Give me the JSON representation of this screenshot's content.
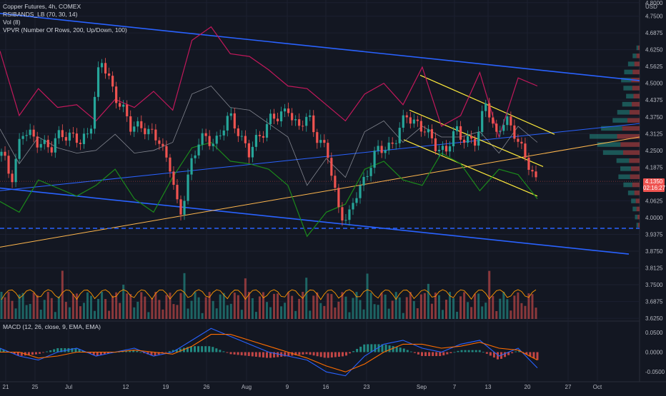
{
  "legend": {
    "symbol": "Copper Futures, 4h, COMEX",
    "indicator1": "RSIBANDS_LB (70, 30, 14)",
    "indicator2": "Vol (8)",
    "indicator3": "VPVR (Number Of Rows, 200, Up/Down, 100)",
    "macd": "MACD (12, 26, close, 9, EMA, EMA)"
  },
  "price_tag": {
    "price": "4.1350",
    "countdown": "02:16:27"
  },
  "colors": {
    "background": "#131722",
    "up": "#26a69a",
    "down": "#ef5350",
    "upper_band": "#c2185b",
    "lower_band": "#1b8a1b",
    "mid_band": "#b2b5be",
    "trend_blue": "#2962ff",
    "trend_orange": "#ffb74d",
    "channel_yellow": "#ffeb3b",
    "macd_line": "#2962ff",
    "signal_line": "#ff6d00"
  },
  "chart_data": {
    "type": "line",
    "title": "Copper Futures, 4h, COMEX",
    "y_unit": "USD",
    "ylim": [
      3.62,
      4.81
    ],
    "x_ticks": [
      "21",
      "25",
      "Jul",
      "12",
      "19",
      "26",
      "Aug",
      "9",
      "16",
      "23",
      "Sep",
      "7",
      "13",
      "20",
      "27",
      "Oct"
    ],
    "y_ticks": [
      "4.8000",
      "4.7500",
      "4.6875",
      "4.6250",
      "4.5625",
      "4.5000",
      "4.4375",
      "4.3750",
      "4.3125",
      "4.2500",
      "4.1875",
      "4.1250",
      "4.0625",
      "4.0000",
      "3.9375",
      "3.8750",
      "3.8125",
      "3.7500",
      "3.6875",
      "3.6250"
    ],
    "macd_ticks": [
      "0.0500",
      "0.0000",
      "-0.0500"
    ],
    "usd_label": "USD",
    "price_series": {
      "name": "Copper Futures",
      "x": [
        0,
        6,
        12,
        18,
        24,
        30,
        36,
        42,
        48,
        54,
        60,
        66,
        72,
        78,
        84,
        90,
        96,
        102,
        108,
        114,
        120,
        126,
        132,
        138,
        144,
        150,
        156
      ],
      "values": [
        4.23,
        4.15,
        4.31,
        4.3,
        4.29,
        4.24,
        4.33,
        4.3,
        4.27,
        4.35,
        4.58,
        4.51,
        4.42,
        4.33,
        4.36,
        4.3,
        4.29,
        4.2,
        3.98,
        4.2,
        4.28,
        4.29,
        4.3,
        4.37,
        4.33,
        4.23,
        4.3
      ]
    },
    "price_series_2": {
      "x": [
        156,
        162,
        168,
        174,
        180,
        186,
        192,
        198,
        204,
        210,
        216,
        222,
        228,
        234,
        240,
        246,
        252,
        258,
        264,
        270,
        276,
        282,
        288,
        294,
        300,
        306,
        312,
        318,
        324
      ],
      "values": [
        4.3,
        4.37,
        4.36,
        4.42,
        4.32,
        4.38,
        4.3,
        4.22,
        4.05,
        3.98,
        4.1,
        4.18,
        4.24,
        4.27,
        4.3,
        4.38,
        4.36,
        4.3,
        4.27,
        4.25,
        4.32,
        4.3,
        4.27,
        4.45,
        4.3,
        4.36,
        4.32,
        4.2,
        4.14
      ]
    },
    "upper_band": {
      "name": "RSI upper band",
      "values": [
        4.62,
        4.38,
        4.48,
        4.41,
        4.42,
        4.36,
        4.44,
        4.41,
        4.47,
        4.4,
        4.66,
        4.71,
        4.61,
        4.6,
        4.55,
        4.49,
        4.48,
        4.42,
        4.36,
        4.46,
        4.5,
        4.42,
        4.56,
        4.34,
        4.38,
        4.54,
        4.3,
        4.52,
        4.49
      ]
    },
    "lower_band": {
      "name": "RSI lower band",
      "values": [
        4.06,
        4.02,
        4.14,
        4.11,
        4.08,
        4.12,
        4.18,
        4.07,
        4.02,
        4.15,
        4.26,
        4.28,
        4.21,
        4.2,
        4.18,
        4.12,
        3.93,
        4.02,
        4.05,
        4.18,
        4.21,
        4.14,
        4.12,
        4.24,
        4.2,
        4.1,
        4.18,
        4.16,
        4.07
      ]
    },
    "mid_band": {
      "name": "RSI mid",
      "values": [
        4.33,
        4.2,
        4.3,
        4.26,
        4.24,
        4.25,
        4.31,
        4.24,
        4.25,
        4.28,
        4.46,
        4.49,
        4.41,
        4.4,
        4.35,
        4.3,
        4.12,
        4.22,
        4.15,
        4.32,
        4.36,
        4.28,
        4.34,
        4.3,
        4.3,
        4.32,
        4.24,
        4.34,
        4.28
      ]
    },
    "trendlines": [
      {
        "color": "blue",
        "from": [
          4.76,
          0
        ],
        "to": [
          4.51,
          1
        ]
      },
      {
        "color": "blue",
        "from": [
          4.11,
          0
        ],
        "to": [
          3.86,
          1
        ]
      },
      {
        "color": "blue",
        "from": [
          4.1,
          0
        ],
        "to": [
          4.35,
          1
        ]
      },
      {
        "color": "orange",
        "from": [
          3.89,
          0
        ],
        "to": [
          4.3,
          1
        ]
      }
    ],
    "channel": [
      {
        "from": [
          4.53,
          0
        ],
        "to": [
          4.31,
          1
        ]
      },
      {
        "from": [
          4.4,
          0
        ],
        "to": [
          4.19,
          1
        ]
      },
      {
        "from": [
          4.29,
          0
        ],
        "to": [
          4.08,
          1
        ]
      }
    ],
    "support_level": 3.96,
    "volume_profile": {
      "prices": [
        3.97,
        4.0,
        4.03,
        4.06,
        4.09,
        4.12,
        4.15,
        4.18,
        4.21,
        4.24,
        4.27,
        4.3,
        4.33,
        4.36,
        4.39,
        4.42,
        4.45,
        4.48,
        4.51,
        4.54,
        4.57,
        4.6,
        4.63
      ],
      "values": [
        8,
        12,
        18,
        22,
        30,
        42,
        55,
        50,
        60,
        95,
        110,
        130,
        100,
        70,
        58,
        45,
        35,
        42,
        48,
        40,
        30,
        18,
        8
      ]
    },
    "macd": {
      "macd_line": [
        0.01,
        -0.01,
        -0.02,
        0.0,
        0.01,
        -0.01,
        0.0,
        0.01,
        -0.01,
        0.0,
        0.03,
        0.06,
        0.04,
        0.02,
        0.0,
        -0.01,
        -0.02,
        -0.05,
        -0.06,
        -0.01,
        0.02,
        0.03,
        0.01,
        0.0,
        0.02,
        0.03,
        -0.01,
        0.01,
        -0.04
      ],
      "signal_line": [
        0.0,
        0.0,
        -0.015,
        -0.01,
        0.0,
        0.0,
        0.0,
        0.005,
        0.0,
        -0.005,
        0.015,
        0.045,
        0.045,
        0.03,
        0.015,
        0.0,
        -0.015,
        -0.035,
        -0.05,
        -0.03,
        0.0,
        0.02,
        0.02,
        0.01,
        0.015,
        0.025,
        0.01,
        0.005,
        -0.02
      ]
    }
  }
}
